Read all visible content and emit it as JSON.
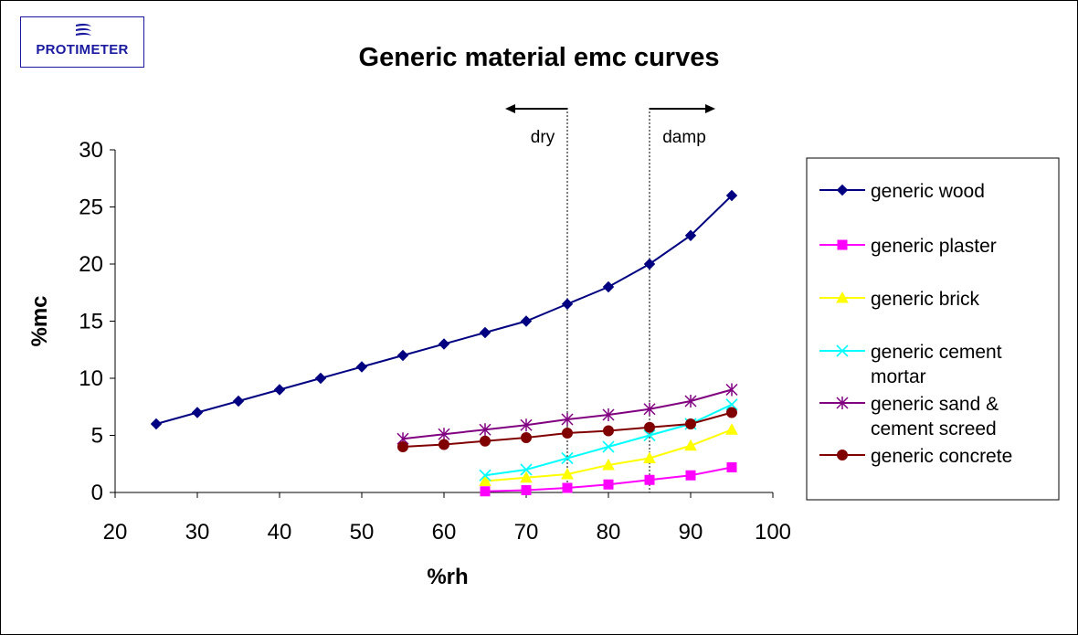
{
  "logo": {
    "text": "PROTIMETER"
  },
  "colors": {
    "wood": "#000080",
    "plaster": "#ff00ff",
    "brick": "#ffff00",
    "cement_mortar": "#00ffff",
    "sand_cement_screed": "#800080",
    "concrete": "#800000"
  },
  "annotations": {
    "dry": "dry",
    "damp": "damp"
  },
  "chart_data": {
    "type": "line",
    "title": "Generic material emc curves",
    "xlabel": "%rh",
    "ylabel": "%mc",
    "xlim": [
      20,
      100
    ],
    "ylim": [
      0,
      30
    ],
    "xticks": [
      20,
      30,
      40,
      50,
      60,
      70,
      80,
      90,
      100
    ],
    "yticks": [
      0,
      5,
      10,
      15,
      20,
      25,
      30
    ],
    "grid": false,
    "legend_position": "right",
    "reference_lines_x": [
      75,
      85
    ],
    "series": [
      {
        "name": "generic wood",
        "marker": "diamond",
        "color": "#000080",
        "x": [
          25,
          30,
          35,
          40,
          45,
          50,
          55,
          60,
          65,
          70,
          75,
          80,
          85,
          90,
          95
        ],
        "y": [
          6,
          7,
          8,
          9,
          10,
          11,
          12,
          13,
          14,
          15,
          16.5,
          18,
          20,
          22.5,
          26
        ]
      },
      {
        "name": "generic plaster",
        "marker": "square",
        "color": "#ff00ff",
        "x": [
          65,
          70,
          75,
          80,
          85,
          90,
          95
        ],
        "y": [
          0.1,
          0.2,
          0.4,
          0.7,
          1.1,
          1.5,
          2.2
        ]
      },
      {
        "name": "generic brick",
        "marker": "triangle",
        "color": "#ffff00",
        "x": [
          65,
          70,
          75,
          80,
          85,
          90,
          95
        ],
        "y": [
          1.0,
          1.3,
          1.6,
          2.4,
          3.0,
          4.1,
          5.5
        ]
      },
      {
        "name": "generic cement mortar",
        "marker": "x",
        "color": "#00ffff",
        "x": [
          65,
          70,
          75,
          80,
          85,
          90,
          95
        ],
        "y": [
          1.5,
          2.0,
          3.0,
          4.0,
          5.0,
          6.0,
          7.7
        ]
      },
      {
        "name": "generic sand & cement screed",
        "marker": "star",
        "color": "#800080",
        "x": [
          55,
          60,
          65,
          70,
          75,
          80,
          85,
          90,
          95
        ],
        "y": [
          4.7,
          5.1,
          5.5,
          5.9,
          6.4,
          6.8,
          7.3,
          8.0,
          9.0
        ]
      },
      {
        "name": "generic concrete",
        "marker": "circle",
        "color": "#800000",
        "x": [
          55,
          60,
          65,
          70,
          75,
          80,
          85,
          90,
          95
        ],
        "y": [
          4.0,
          4.2,
          4.5,
          4.8,
          5.2,
          5.4,
          5.7,
          6.0,
          7.0
        ]
      }
    ],
    "legend_lines": [
      [
        "generic wood"
      ],
      [
        "generic plaster"
      ],
      [
        "generic brick"
      ],
      [
        "generic cement",
        "mortar"
      ],
      [
        "generic sand &",
        "cement screed"
      ],
      [
        "generic concrete"
      ]
    ]
  }
}
